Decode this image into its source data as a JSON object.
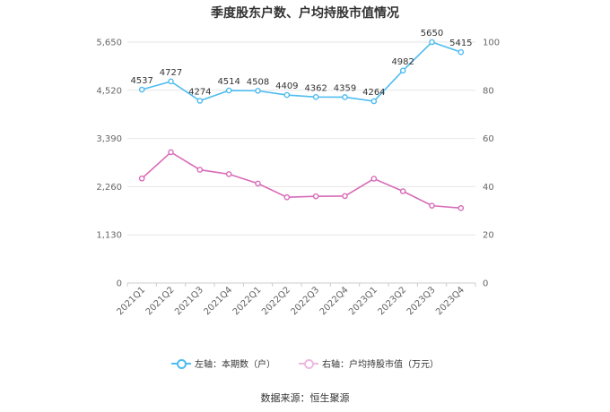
{
  "chart_data": {
    "type": "line",
    "title": "季度股东户数、户均持股市值情况",
    "categories": [
      "2021Q1",
      "2021Q2",
      "2021Q3",
      "2021Q4",
      "2022Q1",
      "2022Q2",
      "2022Q3",
      "2022Q4",
      "2023Q1",
      "2023Q2",
      "2023Q3",
      "2023Q4"
    ],
    "left_axis": {
      "ticks": [
        0,
        1130,
        2260,
        3390,
        4520,
        5650
      ],
      "tick_labels": [
        "0",
        "1,130",
        "2,260",
        "3,390",
        "4,520",
        "5,650"
      ],
      "ylim": [
        0,
        5650
      ]
    },
    "right_axis": {
      "ticks": [
        0,
        20,
        40,
        60,
        80,
        100
      ],
      "tick_labels": [
        "0",
        "20",
        "40",
        "60",
        "80",
        "100"
      ],
      "ylim": [
        0,
        100
      ]
    },
    "series": [
      {
        "name": "左轴：本期数（户）",
        "axis": "left",
        "color": "#4dbcf0",
        "values": [
          4537,
          4727,
          4274,
          4514,
          4508,
          4409,
          4362,
          4359,
          4264,
          4982,
          5650,
          5415
        ],
        "show_labels": true
      },
      {
        "name": "右轴：户均持股市值（万元）",
        "axis": "right",
        "color": "#d86bb8",
        "values": [
          43.4,
          54.3,
          47.0,
          45.2,
          41.3,
          35.6,
          36.0,
          36.1,
          43.3,
          38.1,
          32.1,
          31.1
        ],
        "show_labels": false
      }
    ],
    "grid": true,
    "legend": "bottom"
  },
  "source_text": "数据来源：恒生聚源"
}
